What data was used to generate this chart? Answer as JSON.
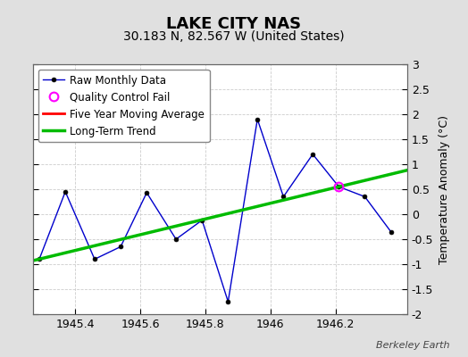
{
  "title": "LAKE CITY NAS",
  "subtitle": "30.183 N, 82.567 W (United States)",
  "ylabel": "Temperature Anomaly (°C)",
  "credit": "Berkeley Earth",
  "xlim": [
    1945.27,
    1946.42
  ],
  "ylim": [
    -2.0,
    3.0
  ],
  "xticks": [
    1945.4,
    1945.6,
    1945.8,
    1946.0,
    1946.2
  ],
  "xticklabels": [
    "1945.4",
    "1945.6",
    "1945.8",
    "1946",
    "1946.2"
  ],
  "yticks": [
    -2.0,
    -1.5,
    -1.0,
    -0.5,
    0.0,
    0.5,
    1.0,
    1.5,
    2.0,
    2.5,
    3.0
  ],
  "yticklabels": [
    "-2",
    "-1.5",
    "-1",
    "-0.5",
    "0",
    "0.5",
    "1",
    "1.5",
    "2",
    "2.5",
    "3"
  ],
  "raw_x": [
    1945.29,
    1945.37,
    1945.46,
    1945.54,
    1945.62,
    1945.71,
    1945.79,
    1945.87,
    1945.96,
    1946.04,
    1946.13,
    1946.21,
    1946.29,
    1946.37
  ],
  "raw_y": [
    -0.9,
    0.45,
    -0.9,
    -0.65,
    0.43,
    -0.5,
    -0.12,
    -1.75,
    1.9,
    0.35,
    1.2,
    0.55,
    0.35,
    -0.35
  ],
  "qc_fail_x": [
    1946.21
  ],
  "qc_fail_y": [
    0.55
  ],
  "trend_x": [
    1945.27,
    1946.42
  ],
  "trend_y": [
    -0.93,
    0.88
  ],
  "raw_color": "#0000cc",
  "raw_marker_color": "#000000",
  "qc_color": "#ff00ff",
  "trend_color": "#00bb00",
  "moving_avg_color": "#ff0000",
  "bg_color": "#e0e0e0",
  "plot_bg_color": "#ffffff",
  "grid_color": "#cccccc",
  "title_fontsize": 13,
  "subtitle_fontsize": 10,
  "ylabel_fontsize": 9,
  "tick_fontsize": 9,
  "legend_fontsize": 8.5
}
